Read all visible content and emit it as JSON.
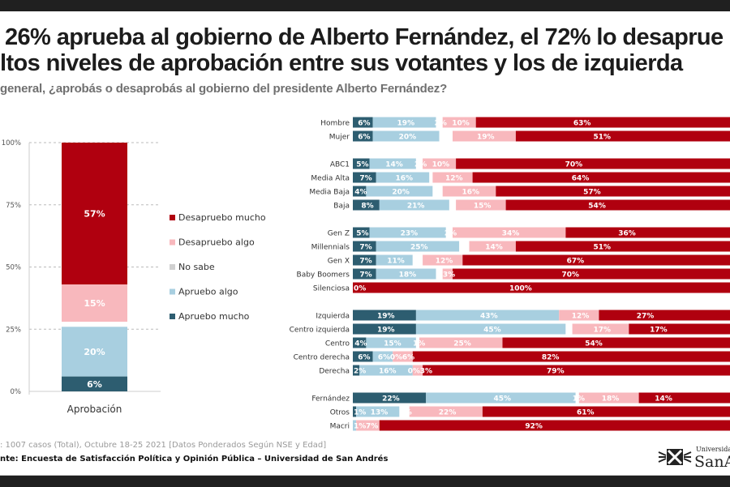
{
  "header": {
    "title_line1": "26% aprueba al gobierno de Alberto Fernández, el 72% lo desaprue",
    "title_line2": "ltos niveles de aprobación entre sus votantes y los de izquierda",
    "subtitle": "general, ¿aprobás o desaprobás al gobierno del presidente Alberto Fernández?"
  },
  "footer": {
    "note": ": 1007 casos (Total), Octubre 18-25 2021 [Datos Ponderados Según NSE y Edad]",
    "source": "nte: Encuesta de Satisfacción Política y Opinión Pública – Universidad de San Andrés",
    "logo_small": "Universidad",
    "logo_big": "SanA"
  },
  "colors": {
    "apruebo_mucho": "#2d5d70",
    "apruebo_algo": "#a8cfe0",
    "no_sabe": "#e6e6e6",
    "desapruebo_algo": "#f8b8bd",
    "desapruebo_mucho": "#b0000f"
  },
  "chart_data": [
    {
      "type": "bar",
      "stacked": true,
      "orientation": "vertical",
      "categories": [
        "Aprobación"
      ],
      "yticks": [
        "0%",
        "25%",
        "50%",
        "75%",
        "100%"
      ],
      "ylim": [
        0,
        100
      ],
      "grid": true,
      "legend_position": "right",
      "series": [
        {
          "name": "Apruebo mucho",
          "key": "apruebo_mucho",
          "values": [
            6
          ],
          "labels": [
            "6%"
          ]
        },
        {
          "name": "Apruebo algo",
          "key": "apruebo_algo",
          "values": [
            20
          ],
          "labels": [
            "20%"
          ]
        },
        {
          "name": "No sabe",
          "key": "no_sabe",
          "values": [
            2
          ],
          "labels": [
            ""
          ]
        },
        {
          "name": "Desapruebo algo",
          "key": "desapruebo_algo",
          "values": [
            15
          ],
          "labels": [
            "15%"
          ]
        },
        {
          "name": "Desapruebo mucho",
          "key": "desapruebo_mucho",
          "values": [
            57
          ],
          "labels": [
            "57%"
          ]
        }
      ],
      "legend": [
        "Desapruebo mucho",
        "Desapruebo algo",
        "No sabe",
        "Apruebo algo",
        "Apruebo mucho"
      ]
    },
    {
      "type": "bar",
      "stacked": true,
      "orientation": "horizontal",
      "series_keys": [
        "apruebo_mucho",
        "apruebo_algo",
        "no_sabe",
        "desapruebo_algo",
        "desapruebo_mucho"
      ],
      "groups": [
        {
          "rows": [
            {
              "label": "Hombre",
              "values": [
                6,
                19,
                2,
                10,
                63
              ],
              "labels": [
                "6%",
                "19%",
                "2%",
                "10%",
                "63%"
              ]
            },
            {
              "label": "Mujer",
              "values": [
                6,
                20,
                4,
                19,
                51
              ],
              "labels": [
                "6%",
                "20%",
                "",
                "19%",
                "51%"
              ]
            }
          ]
        },
        {
          "rows": [
            {
              "label": "ABC1",
              "values": [
                5,
                14,
                2,
                10,
                70
              ],
              "labels": [
                "5%",
                "14%",
                "2%",
                "10%",
                "70%"
              ]
            },
            {
              "label": "Media Alta",
              "values": [
                7,
                16,
                1,
                12,
                64
              ],
              "labels": [
                "7%",
                "16%",
                "",
                "12%",
                "64%"
              ]
            },
            {
              "label": "Media Baja",
              "values": [
                4,
                20,
                3,
                16,
                57
              ],
              "labels": [
                "4%",
                "20%",
                "",
                "16%",
                "57%"
              ]
            },
            {
              "label": "Baja",
              "values": [
                8,
                21,
                2,
                15,
                54
              ],
              "labels": [
                "8%",
                "21%",
                "",
                "15%",
                "54%"
              ]
            }
          ]
        },
        {
          "rows": [
            {
              "label": "Gen Z",
              "values": [
                5,
                23,
                2,
                34,
                36
              ],
              "labels": [
                "5%",
                "23%",
                "2%",
                "34%",
                "36%"
              ]
            },
            {
              "label": "Millennials",
              "values": [
                7,
                25,
                3,
                14,
                51
              ],
              "labels": [
                "7%",
                "25%",
                "",
                "14%",
                "51%"
              ]
            },
            {
              "label": "Gen X",
              "values": [
                7,
                11,
                3,
                12,
                67
              ],
              "labels": [
                "7%",
                "11%",
                "",
                "12%",
                "67%"
              ]
            },
            {
              "label": "Baby Boomers",
              "values": [
                7,
                18,
                2,
                3,
                70
              ],
              "labels": [
                "7%",
                "18%",
                "",
                "3%",
                "70%"
              ]
            },
            {
              "label": "Silenciosa",
              "values": [
                0,
                0,
                0,
                0,
                100
              ],
              "labels": [
                "0%",
                "",
                "",
                "",
                "100%"
              ]
            }
          ]
        },
        {
          "rows": [
            {
              "label": "Izquierda",
              "values": [
                19,
                43,
                0,
                12,
                27
              ],
              "labels": [
                "19%",
                "43%",
                "",
                "12%",
                "27%"
              ]
            },
            {
              "label": "Centro izquierda",
              "values": [
                19,
                45,
                2,
                17,
                17
              ],
              "labels": [
                "19%",
                "45%",
                "",
                "17%",
                "17%"
              ]
            },
            {
              "label": "Centro",
              "values": [
                4,
                15,
                1,
                25,
                54
              ],
              "labels": [
                "4%",
                "15%",
                "1%",
                "25%",
                "54%"
              ]
            },
            {
              "label": "Centro derecha",
              "values": [
                6,
                6,
                0,
                6,
                82
              ],
              "labels": [
                "6%",
                "6%",
                "0%",
                "6%",
                "82%"
              ]
            },
            {
              "label": "Derecha",
              "values": [
                2,
                16,
                0,
                3,
                79
              ],
              "labels": [
                "2%",
                "16%",
                "0%",
                "3%",
                "79%"
              ]
            }
          ]
        },
        {
          "rows": [
            {
              "label": "Fernández",
              "values": [
                22,
                45,
                1,
                18,
                14
              ],
              "labels": [
                "22%",
                "45%",
                "1%",
                "18%",
                "14%"
              ]
            },
            {
              "label": "Otros",
              "values": [
                1,
                13,
                3,
                22,
                61
              ],
              "labels": [
                "1%",
                "13%",
                "3%",
                "22%",
                "61%"
              ]
            },
            {
              "label": "Macri",
              "values": [
                0,
                1,
                0,
                7,
                92
              ],
              "labels": [
                "",
                "1%",
                "",
                "7%",
                "92%"
              ]
            }
          ]
        }
      ]
    }
  ]
}
